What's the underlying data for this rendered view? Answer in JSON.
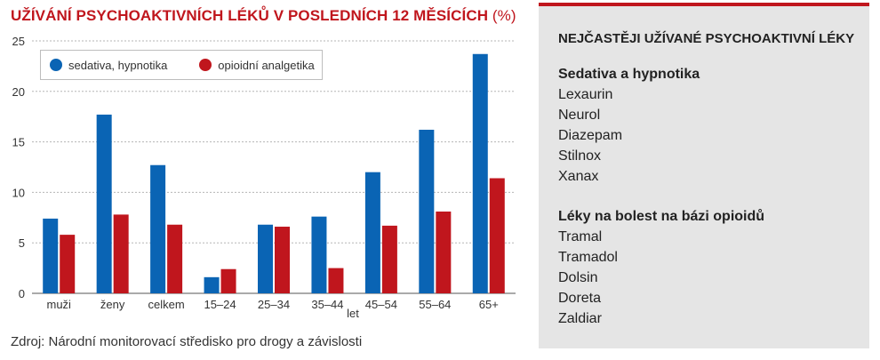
{
  "title": "UŽÍVÁNÍ PSYCHOAKTIVNÍCH LÉKŮ V POSLEDNÍCH 12 MĚSÍCÍCH",
  "title_unit": "(%)",
  "source": "Zdroj: Národní monitorovací středisko pro drogy a závislosti",
  "colors": {
    "accent": "#c0161d",
    "series1": "#0a64b4",
    "series2": "#c0161d",
    "panel_bg": "#e5e5e5"
  },
  "chart_data": {
    "type": "bar",
    "title": "UŽÍVÁNÍ PSYCHOAKTIVNÍCH LÉKŮ V POSLEDNÍCH 12 MĚSÍCÍCH (%)",
    "categories": [
      "muži",
      "ženy",
      "celkem",
      "15–24",
      "25–34",
      "35–44",
      "45–54",
      "55–64",
      "65+"
    ],
    "xlabel": "let",
    "ylabel": "",
    "ylim": [
      0,
      25
    ],
    "yticks": [
      0,
      5,
      10,
      15,
      20,
      25
    ],
    "grid": true,
    "legend_position": "top-left",
    "series": [
      {
        "name": "sedativa, hypnotika",
        "color": "#0a64b4",
        "values": [
          7.4,
          17.7,
          12.7,
          1.6,
          6.8,
          7.6,
          12.0,
          16.2,
          23.7
        ]
      },
      {
        "name": "opioidní analgetika",
        "color": "#c0161d",
        "values": [
          5.8,
          7.8,
          6.8,
          2.4,
          6.6,
          2.5,
          6.7,
          8.1,
          11.4
        ]
      }
    ]
  },
  "panel": {
    "title": "NEJČASTĚJI UŽÍVANÉ PSYCHOAKTIVNÍ LÉKY",
    "groups": [
      {
        "title": "Sedativa a hypnotika",
        "items": [
          "Lexaurin",
          "Neurol",
          "Diazepam",
          "Stilnox",
          "Xanax"
        ]
      },
      {
        "title": "Léky na bolest na bázi opioidů",
        "items": [
          "Tramal",
          "Tramadol",
          "Dolsin",
          "Doreta",
          "Zaldiar"
        ]
      }
    ]
  }
}
